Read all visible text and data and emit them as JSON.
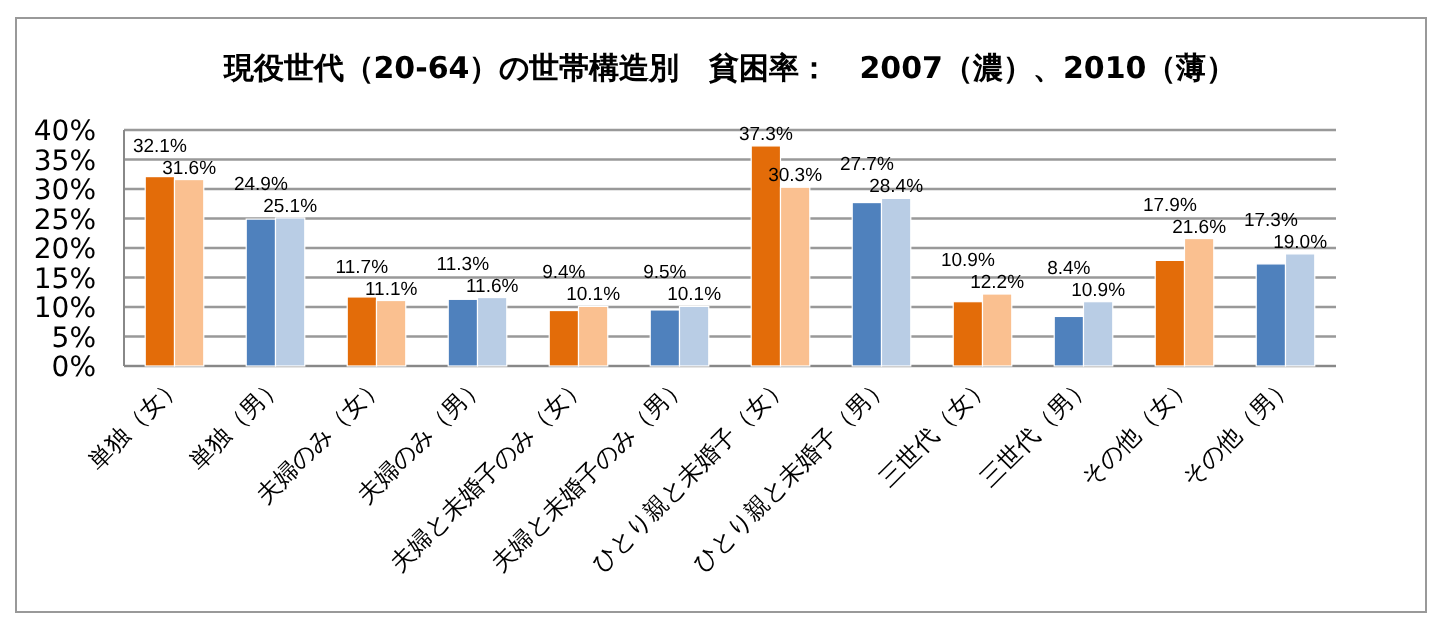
{
  "chart_data": {
    "type": "bar",
    "title": "現役世代（20-64）の世帯構造別　貧困率：　2007（濃）、2010（薄）",
    "categories": [
      "単独（女）",
      "単独（男）",
      "夫婦のみ（女）",
      "夫婦のみ（男）",
      "夫婦と未婚子のみ（女）",
      "夫婦と未婚子のみ（男）",
      "ひとり親と未婚子（女）",
      "ひとり親と未婚子（男）",
      "三世代（女）",
      "三世代（男）",
      "その他（女）",
      "その他（男）"
    ],
    "series": [
      {
        "colors": [
          "#e36c09",
          "#4f81bd",
          "#e36c09",
          "#4f81bd",
          "#e36c09",
          "#4f81bd",
          "#e36c09",
          "#4f81bd",
          "#e36c09",
          "#4f81bd",
          "#e36c09",
          "#4f81bd"
        ],
        "values": [
          32.1,
          24.9,
          11.7,
          11.3,
          9.4,
          9.5,
          37.3,
          27.7,
          10.9,
          8.4,
          17.9,
          17.3
        ],
        "value_labels": [
          "32.1%",
          "24.9%",
          "11.7%",
          "11.3%",
          "9.4%",
          "9.5%",
          "37.3%",
          "27.7%",
          "10.9%",
          "8.4%",
          "17.9%",
          "17.3%"
        ]
      },
      {
        "colors": [
          "#fac090",
          "#b9cde5",
          "#fac090",
          "#b9cde5",
          "#fac090",
          "#b9cde5",
          "#fac090",
          "#b9cde5",
          "#fac090",
          "#b9cde5",
          "#fac090",
          "#b9cde5"
        ],
        "values": [
          31.6,
          25.1,
          11.1,
          11.6,
          10.1,
          10.1,
          30.3,
          28.4,
          12.2,
          10.9,
          21.6,
          19.0
        ],
        "value_labels": [
          "31.6%",
          "25.1%",
          "11.1%",
          "11.6%",
          "10.1%",
          "10.1%",
          "30.3%",
          "28.4%",
          "12.2%",
          "10.9%",
          "21.6%",
          "19.0%"
        ]
      }
    ],
    "ylim": [
      0,
      40
    ],
    "yticks": [
      {
        "value": 0,
        "label": "0%"
      },
      {
        "value": 5,
        "label": "5%"
      },
      {
        "value": 10,
        "label": "10%"
      },
      {
        "value": 15,
        "label": "15%"
      },
      {
        "value": 20,
        "label": "20%"
      },
      {
        "value": 25,
        "label": "25%"
      },
      {
        "value": 30,
        "label": "30%"
      },
      {
        "value": 35,
        "label": "35%"
      },
      {
        "value": 40,
        "label": "40%"
      }
    ],
    "grid": "y"
  }
}
